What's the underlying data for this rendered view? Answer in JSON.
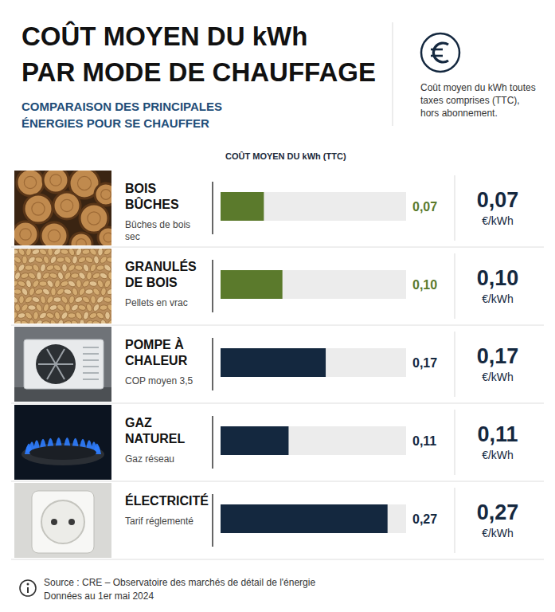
{
  "chart_data": {
    "type": "bar",
    "orientation": "horizontal",
    "title": "COÛT MOYEN DU kWh\nPAR MODE DE CHAUFFAGE",
    "subtitle": "COMPARAISON DES PRINCIPALES ÉNERGIES POUR SE CHAUFFER",
    "note": "Coût moyen du kWh toutes taxes comprises (TTC), hors abonnement.",
    "x_label": "COÛT MOYEN DU kWh (TTC)",
    "categories": [
      "BOIS\nBÛCHES",
      "GRANULÉS\nDE BOIS",
      "POMPE À\nCHALEUR",
      "GAZ\nNATUREL",
      "ÉLECTRICITÉ"
    ],
    "descriptions": [
      "Bûches de bois sec",
      "Pellets en vrac",
      "COP moyen 3,5",
      "Gaz réseau",
      "Tarif réglementé"
    ],
    "values": [
      0.07,
      0.1,
      0.17,
      0.11,
      0.27
    ],
    "value_labels": [
      "0,07",
      "0,10",
      "0,17",
      "0,11",
      "0,27"
    ],
    "unit": "€/kWh",
    "colors": [
      "#5b7a2c",
      "#5b7a2c",
      "#14283f",
      "#14283f",
      "#14283f"
    ],
    "xlim": [
      0,
      0.3
    ],
    "tick_labels": false,
    "data_labels": true,
    "grid": false,
    "source": "Source : CRE – Observatoire des marchés de détail de l'énergie",
    "date_note": "Données au 1er mai 2024"
  }
}
